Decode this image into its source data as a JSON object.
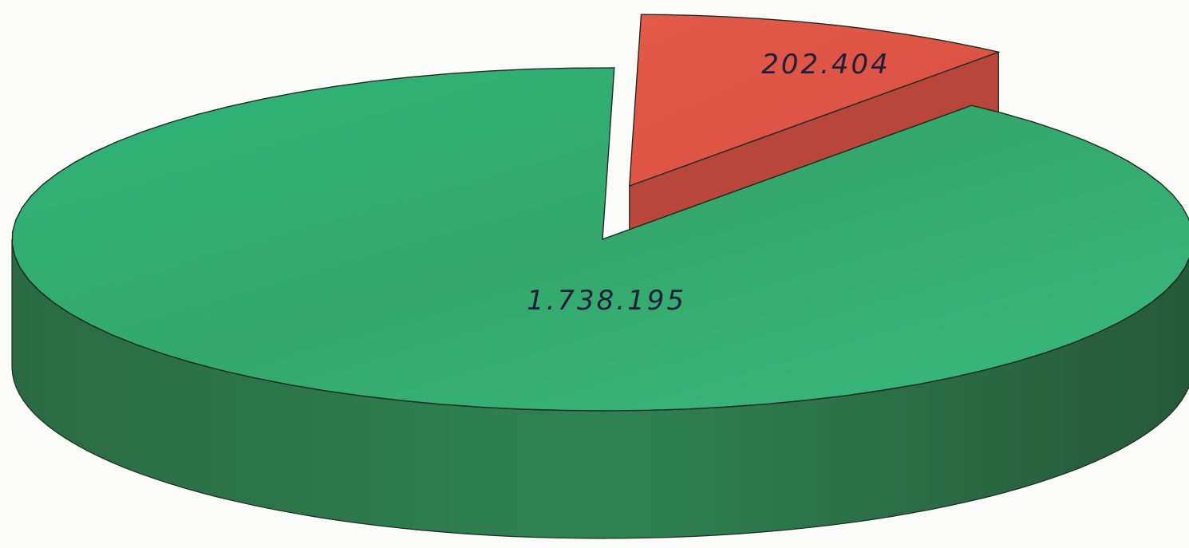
{
  "chart_data": {
    "type": "pie",
    "style": "3d-exploded",
    "slices": [
      {
        "label": "1.738.195",
        "value": 1738195,
        "color": "#3aa36a",
        "top_color": "#35b57c",
        "side_color": "#2e7a4c",
        "exploded": false
      },
      {
        "label": "202.404",
        "value": 202404,
        "color": "#d9523f",
        "top_color": "#e05545",
        "side_color": "#b34534",
        "exploded": true
      }
    ],
    "title": "",
    "legend": "none"
  }
}
